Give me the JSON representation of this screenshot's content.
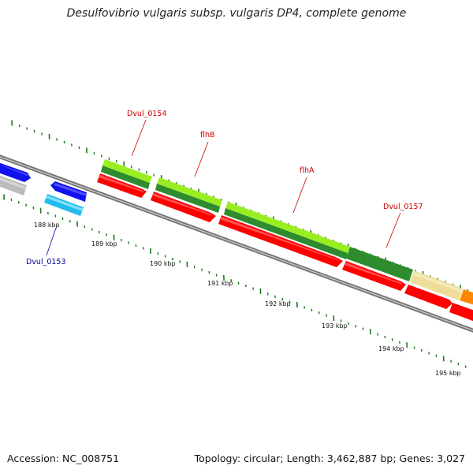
{
  "title": "Desulfovibrio vulgaris subsp. vulgaris DP4, complete genome",
  "footer": {
    "accession": "Accession: NC_008751",
    "stats": "Topology: circular; Length: 3,462,887 bp; Genes: 3,027"
  },
  "colors": {
    "forward_cds": "#2e8b2e",
    "forward_mrna": "#99ee22",
    "reverse_cds": "#ff0000",
    "reverse_other": "#1111ee",
    "reverse_light": "#22bbee",
    "gray_feature": "#bbbbbb",
    "pale_feature": "#eedd99",
    "orange_feature": "#ff8800",
    "forward_label": "#cc0000",
    "reverse_label": "#000099",
    "tick": "#1a7a1a",
    "backbone": "#888888"
  },
  "ruler": {
    "unit": "kbp",
    "labels": [
      "188 kbp",
      "189 kbp",
      "190 kbp",
      "191 kbp",
      "192 kbp",
      "193 kbp",
      "194 kbp",
      "195 kbp"
    ]
  },
  "gene_labels": {
    "dvul_0153": "Dvul_0153",
    "dvul_0154": "Dvul_0154",
    "flhB": "flhB",
    "flhA": "flhA",
    "dvul_0157": "Dvul_0157"
  }
}
